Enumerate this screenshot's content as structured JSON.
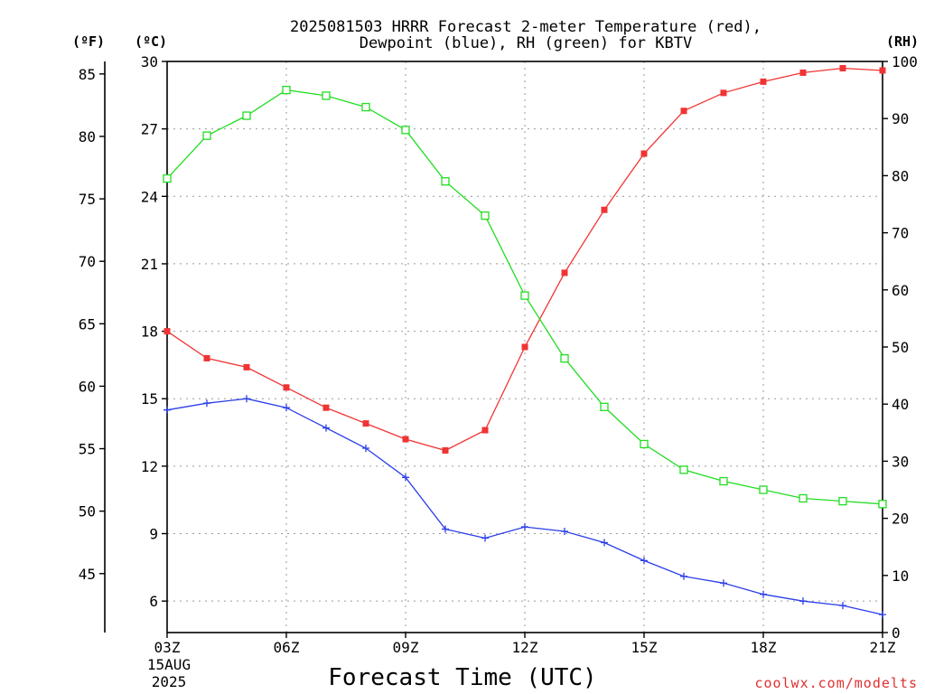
{
  "chart_data": {
    "type": "line",
    "title_lines": [
      "2025081503 HRRR Forecast 2-meter Temperature (red),",
      "Dewpoint (blue), RH (green) for KBTV"
    ],
    "xlabel": "Forecast Time (UTC)",
    "credit": "coolwx.com/modelts",
    "x_tick_labels": [
      "03Z",
      "06Z",
      "09Z",
      "12Z",
      "15Z",
      "18Z",
      "21Z"
    ],
    "x_date_labels": [
      "15AUG",
      "2025"
    ],
    "x_hours": [
      3,
      4,
      5,
      6,
      7,
      8,
      9,
      10,
      11,
      12,
      13,
      14,
      15,
      16,
      17,
      18,
      19,
      20,
      21
    ],
    "xlim": [
      3,
      21
    ],
    "left_celsius_axis": {
      "unit_label": "(ºC)",
      "range": [
        4.6,
        30
      ],
      "ticks": [
        6,
        9,
        12,
        15,
        18,
        21,
        24,
        27,
        30
      ]
    },
    "left_fahrenheit_axis": {
      "unit_label": "(ºF)",
      "ticks": [
        45,
        50,
        55,
        60,
        65,
        70,
        75,
        80,
        85
      ]
    },
    "right_rh_axis": {
      "unit_label": "(RH)",
      "range": [
        0,
        100
      ],
      "ticks": [
        0,
        10,
        20,
        30,
        40,
        50,
        60,
        70,
        80,
        90,
        100
      ]
    },
    "grid": true,
    "series": [
      {
        "name": "Temperature",
        "color": "#f03434",
        "marker": "filled-square",
        "axis": "celsius",
        "values": [
          18.0,
          16.8,
          16.4,
          15.5,
          14.6,
          13.9,
          13.2,
          12.7,
          13.6,
          17.3,
          20.6,
          23.4,
          25.9,
          27.8,
          28.6,
          29.1,
          29.5,
          29.7,
          29.6
        ]
      },
      {
        "name": "Dewpoint",
        "color": "#2b3ee8",
        "marker": "plus",
        "axis": "celsius",
        "values": [
          14.5,
          14.8,
          15.0,
          14.6,
          13.7,
          12.8,
          11.5,
          9.2,
          8.8,
          9.3,
          9.1,
          8.6,
          7.8,
          7.1,
          6.8,
          6.3,
          6.0,
          5.8,
          5.4
        ]
      },
      {
        "name": "RH",
        "color": "#22dd22",
        "marker": "open-square",
        "axis": "rh",
        "values": [
          79.5,
          87,
          90.5,
          95,
          94,
          92,
          88,
          79,
          73,
          59,
          48,
          39.5,
          33,
          28.5,
          26.5,
          25,
          23.5,
          23,
          22.5
        ]
      }
    ]
  }
}
